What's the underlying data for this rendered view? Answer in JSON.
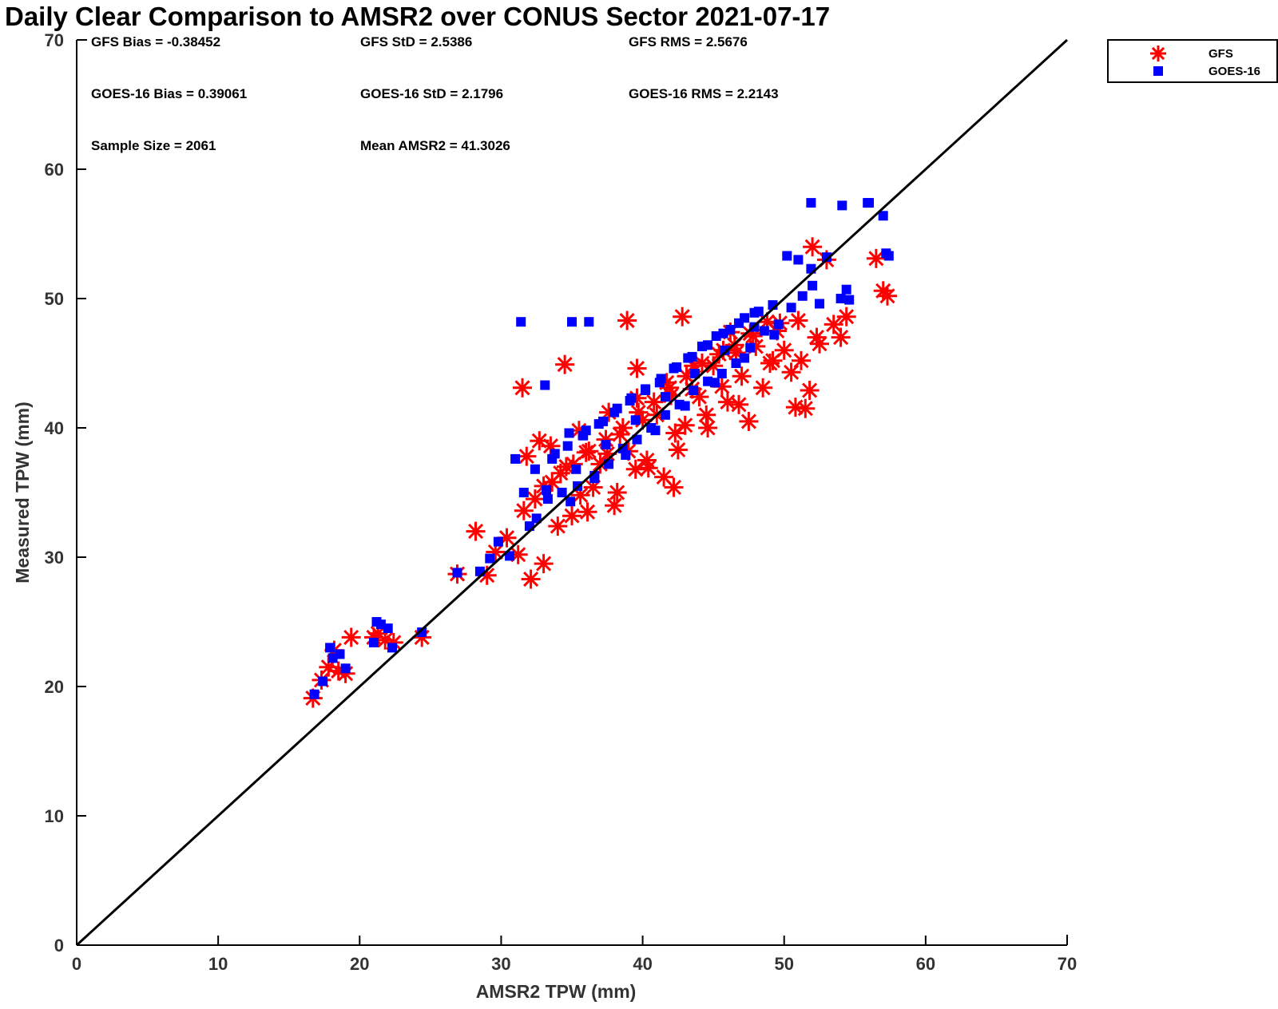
{
  "chart_data": {
    "type": "scatter",
    "title": "Daily Clear Comparison to AMSR2 over CONUS Sector 2021-07-17",
    "xlabel": "AMSR2 TPW (mm)",
    "ylabel": "Measured TPW (mm)",
    "xlim": [
      0,
      70
    ],
    "ylim": [
      0,
      70
    ],
    "xticks": [
      "0",
      "10",
      "20",
      "30",
      "40",
      "50",
      "60",
      "70"
    ],
    "yticks": [
      "0",
      "10",
      "20",
      "30",
      "40",
      "50",
      "60",
      "70"
    ],
    "grid": false,
    "legend_position": "outside top-right",
    "stats": [
      [
        "GFS Bias = -0.38452",
        "GFS StD = 2.5386",
        "GFS RMS = 2.5676"
      ],
      [
        "GOES-16 Bias = 0.39061",
        "GOES-16 StD = 2.1796",
        "GOES-16 RMS = 2.2143"
      ],
      [
        "Sample Size = 2061",
        "Mean AMSR2 = 41.3026"
      ]
    ],
    "reference_line": {
      "from": [
        0,
        0
      ],
      "to": [
        70,
        70
      ],
      "color": "#000000"
    },
    "series": [
      {
        "name": "GFS",
        "marker": "asterisk",
        "color": "#ff0000",
        "x": [
          16.7,
          17.3,
          17.8,
          18.2,
          18.5,
          19.0,
          19.4,
          21.0,
          21.3,
          21.8,
          22.4,
          24.4,
          26.9,
          28.2,
          29.0,
          29.6,
          30.4,
          31.2,
          31.6,
          32.1,
          32.4,
          33.0,
          33.6,
          34.0,
          34.6,
          35.0,
          35.6,
          36.0,
          36.5,
          37.0,
          37.5,
          38.0,
          38.4,
          39.0,
          39.5,
          40.0,
          40.3,
          41.0,
          41.5,
          42.0,
          42.3,
          43.0,
          43.5,
          44.0,
          44.5,
          45.0,
          45.6,
          46.0,
          46.6,
          47.0,
          47.5,
          48.0,
          48.5,
          49.0,
          49.5,
          50.0,
          50.5,
          51.0,
          51.5,
          51.8,
          52.0,
          52.5,
          53.0,
          53.5,
          54.0,
          54.4,
          56.5,
          57.0,
          57.3,
          33.0,
          34.2,
          35.1,
          36.2,
          37.4,
          38.6,
          39.7,
          40.8,
          41.9,
          43.1,
          44.2,
          45.4,
          46.5,
          47.6,
          48.8,
          31.8,
          33.5,
          35.5,
          37.6,
          39.6,
          41.7,
          43.6,
          45.7,
          47.8,
          49.7,
          36.1,
          38.2,
          40.4,
          42.5,
          44.6,
          46.8,
          34.5,
          38.9,
          42.8,
          46.2,
          49.2,
          50.8,
          51.2,
          52.3,
          31.5,
          32.7,
          39.6,
          42.2
        ],
        "y": [
          19.1,
          20.5,
          21.5,
          22.8,
          21.2,
          21.0,
          23.8,
          23.8,
          24.1,
          23.6,
          23.4,
          23.8,
          28.7,
          32.0,
          28.6,
          30.4,
          31.5,
          30.2,
          33.6,
          28.3,
          34.5,
          29.5,
          35.8,
          32.4,
          37.0,
          33.2,
          34.8,
          38.1,
          35.4,
          37.2,
          38.0,
          34.0,
          39.5,
          38.2,
          36.8,
          40.6,
          37.5,
          41.0,
          36.2,
          42.5,
          39.6,
          40.2,
          43.0,
          42.4,
          41.0,
          44.8,
          43.2,
          42.0,
          45.8,
          44.0,
          40.5,
          46.3,
          43.1,
          45.0,
          47.5,
          46.0,
          44.3,
          48.3,
          41.5,
          42.9,
          54.0,
          46.5,
          53.0,
          48.0,
          47.0,
          48.6,
          53.1,
          50.6,
          50.2,
          35.5,
          36.5,
          37.2,
          38.2,
          39.1,
          40.0,
          41.2,
          42.0,
          43.1,
          44.0,
          45.0,
          45.7,
          46.4,
          47.3,
          48.2,
          37.8,
          38.6,
          39.8,
          41.2,
          42.3,
          43.5,
          44.8,
          46.0,
          47.1,
          48.1,
          33.5,
          35.0,
          36.9,
          38.3,
          40.0,
          41.8,
          44.9,
          48.3,
          48.6,
          47.4,
          45.2,
          41.6,
          45.2,
          47.0,
          43.1,
          39.0,
          44.6,
          35.4
        ]
      },
      {
        "name": "GOES-16",
        "marker": "square",
        "color": "#0000ff",
        "x": [
          16.8,
          17.4,
          17.9,
          18.1,
          18.6,
          19.0,
          21.0,
          21.2,
          21.5,
          22.0,
          22.3,
          24.4,
          26.9,
          28.5,
          29.2,
          29.8,
          30.6,
          31.0,
          31.4,
          31.6,
          32.0,
          32.5,
          33.1,
          33.3,
          33.8,
          34.3,
          34.8,
          35.0,
          35.4,
          36.0,
          36.2,
          36.6,
          37.2,
          37.6,
          38.2,
          38.6,
          39.2,
          39.6,
          40.2,
          40.6,
          41.2,
          41.6,
          42.2,
          42.6,
          43.2,
          43.6,
          44.2,
          44.6,
          45.2,
          45.6,
          46.2,
          46.6,
          47.2,
          47.6,
          48.2,
          48.6,
          49.2,
          49.6,
          50.2,
          50.5,
          51.0,
          51.3,
          51.9,
          52.0,
          52.5,
          53.0,
          54.0,
          54.4,
          54.6,
          56.0,
          57.0,
          57.2,
          57.4,
          51.9,
          54.1,
          55.9,
          32.4,
          33.6,
          34.7,
          35.8,
          36.9,
          38.0,
          39.1,
          40.2,
          41.3,
          42.4,
          43.5,
          44.6,
          45.7,
          46.8,
          47.9,
          33.2,
          35.3,
          37.4,
          39.5,
          41.6,
          43.7,
          45.8,
          47.9,
          34.9,
          36.6,
          38.8,
          40.9,
          43.0,
          45.1,
          47.2,
          49.3
        ],
        "y": [
          19.4,
          20.4,
          23.0,
          22.2,
          22.5,
          21.4,
          23.4,
          25.0,
          24.8,
          24.5,
          23.0,
          24.2,
          28.8,
          28.9,
          29.9,
          31.2,
          30.1,
          37.6,
          48.2,
          35.0,
          32.4,
          33.0,
          43.3,
          34.5,
          38.0,
          35.0,
          39.6,
          48.2,
          35.5,
          39.8,
          48.2,
          36.3,
          40.5,
          37.2,
          41.5,
          38.4,
          42.3,
          39.1,
          43.0,
          40.0,
          43.5,
          41.0,
          44.6,
          41.8,
          45.4,
          42.9,
          46.3,
          43.6,
          47.1,
          44.2,
          47.6,
          45.0,
          48.5,
          46.2,
          49.0,
          47.5,
          49.5,
          48.0,
          53.3,
          49.3,
          53.0,
          50.2,
          52.3,
          51.0,
          49.6,
          53.2,
          50.0,
          50.7,
          49.9,
          57.4,
          56.4,
          53.5,
          53.3,
          57.4,
          57.2,
          57.4,
          36.8,
          37.6,
          38.6,
          39.4,
          40.3,
          41.2,
          42.1,
          42.9,
          43.8,
          44.7,
          45.5,
          46.4,
          47.3,
          48.1,
          48.9,
          35.2,
          36.8,
          38.7,
          40.6,
          42.4,
          44.2,
          46.0,
          47.8,
          34.3,
          36.1,
          37.9,
          39.8,
          41.7,
          43.5,
          45.4,
          47.2
        ]
      }
    ]
  }
}
